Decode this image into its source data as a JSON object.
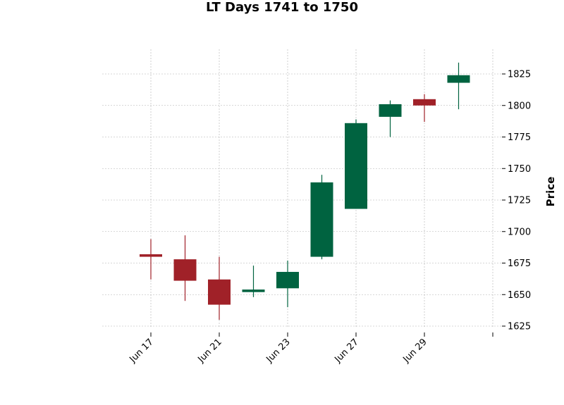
{
  "chart_data": {
    "type": "candlestick",
    "title": "LT Days 1741 to 1750",
    "ylabel": "Price",
    "xlabel": "",
    "ylim": [
      1620,
      1847
    ],
    "grid": true,
    "colors": {
      "up": "#006340",
      "down": "#a02128",
      "grid": "#b0b0b0"
    },
    "yticks": [
      1625,
      1650,
      1675,
      1700,
      1725,
      1750,
      1775,
      1800,
      1825
    ],
    "xtick_labels": [
      "Jun 17",
      "Jun 21",
      "Jun 23",
      "Jun 27",
      "Jun 29",
      ""
    ],
    "candles": [
      {
        "open": 1682,
        "high": 1694,
        "low": 1662,
        "close": 1680
      },
      {
        "open": 1678,
        "high": 1697,
        "low": 1645,
        "close": 1661
      },
      {
        "open": 1662,
        "high": 1680,
        "low": 1630,
        "close": 1642
      },
      {
        "open": 1652,
        "high": 1673,
        "low": 1648,
        "close": 1654
      },
      {
        "open": 1655,
        "high": 1677,
        "low": 1640,
        "close": 1668
      },
      {
        "open": 1680,
        "high": 1745,
        "low": 1678,
        "close": 1739
      },
      {
        "open": 1718,
        "high": 1789,
        "low": 1718,
        "close": 1786
      },
      {
        "open": 1791,
        "high": 1804,
        "low": 1775,
        "close": 1801
      },
      {
        "open": 1805,
        "high": 1809,
        "low": 1787,
        "close": 1800
      },
      {
        "open": 1818,
        "high": 1834,
        "low": 1797,
        "close": 1824
      }
    ]
  }
}
